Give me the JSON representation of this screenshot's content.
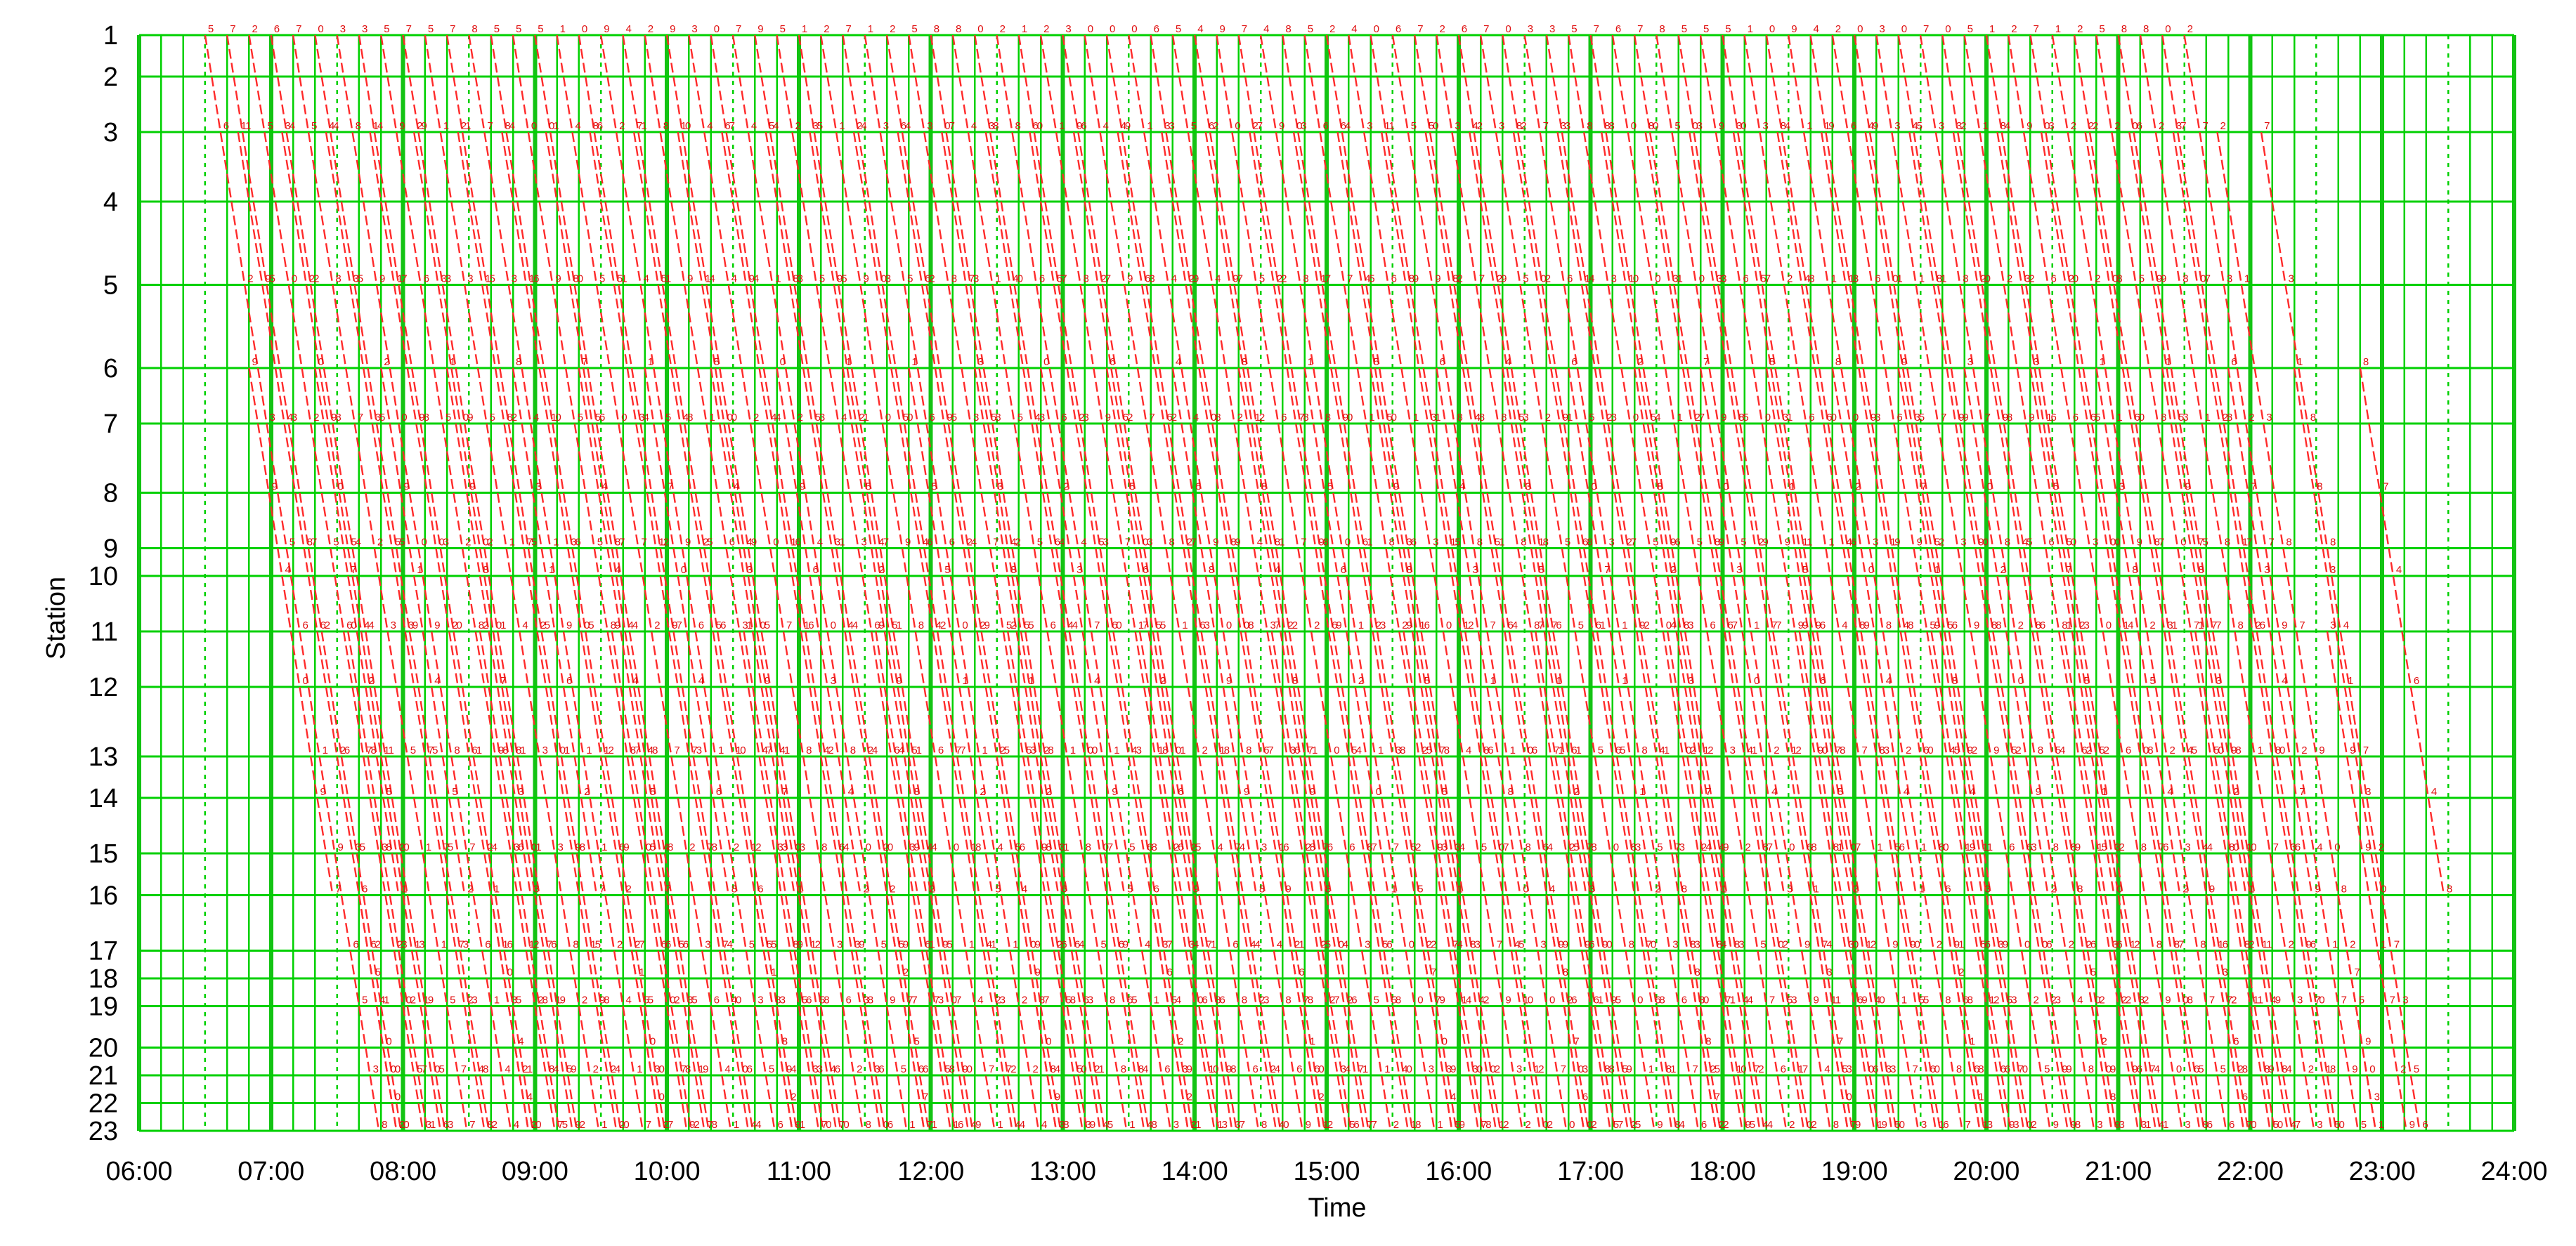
{
  "chart_data": {
    "type": "line",
    "subtype": "train-timetable-time-distance",
    "title": "",
    "xlabel": "Time",
    "ylabel": "Station",
    "x_tick_labels": [
      "06:00",
      "07:00",
      "08:00",
      "09:00",
      "10:00",
      "11:00",
      "12:00",
      "13:00",
      "14:00",
      "15:00",
      "16:00",
      "17:00",
      "18:00",
      "19:00",
      "20:00",
      "21:00",
      "22:00",
      "23:00",
      "24:00"
    ],
    "xlim": [
      "06:00",
      "24:00"
    ],
    "stations": [
      "1",
      "2",
      "3",
      "4",
      "5",
      "6",
      "7",
      "8",
      "9",
      "10",
      "11",
      "12",
      "13",
      "14",
      "15",
      "16",
      "17",
      "18",
      "19",
      "20",
      "21",
      "22",
      "23"
    ],
    "station_running_minutes": [
      0,
      3,
      7,
      12,
      18,
      24,
      28,
      33,
      37,
      39,
      43,
      47,
      52,
      55,
      59,
      62,
      66,
      68,
      70,
      73,
      75,
      77,
      79
    ],
    "ylim": [
      "1",
      "23"
    ],
    "grid": true,
    "legend": "none",
    "colors": {
      "background": "#ffffff",
      "grid_hour": "#13c313",
      "grid_minor": "#00d000",
      "train_line": "#ff2a2a",
      "train_label": "#e01010",
      "axis_text": "#000000"
    },
    "series": [
      {
        "service": "1 → 23",
        "first_departure": "06:30",
        "last_departure": "21:30",
        "headway_min": 10,
        "from_station": "1",
        "to_station": "23"
      },
      {
        "service": "3 → 23",
        "first_departure": "06:45",
        "last_departure": "22:15",
        "headway_min": 20,
        "from_station": "3",
        "to_station": "23"
      },
      {
        "service": "6 → 16",
        "first_departure": "06:50",
        "last_departure": "23:10",
        "headway_min": 30,
        "from_station": "6",
        "to_station": "16"
      },
      {
        "service": "11 → 23",
        "first_departure": "07:35",
        "last_departure": "22:35",
        "headway_min": 60,
        "from_station": "11",
        "to_station": "23"
      },
      {
        "service": "16 → 23",
        "first_departure": "07:40",
        "last_departure": "22:40",
        "headway_min": 60,
        "from_station": "16",
        "to_station": "23"
      }
    ],
    "label_marks": [
      "1",
      "2",
      "3",
      "4",
      "5",
      "6",
      "7",
      "8",
      "9",
      "0"
    ]
  }
}
